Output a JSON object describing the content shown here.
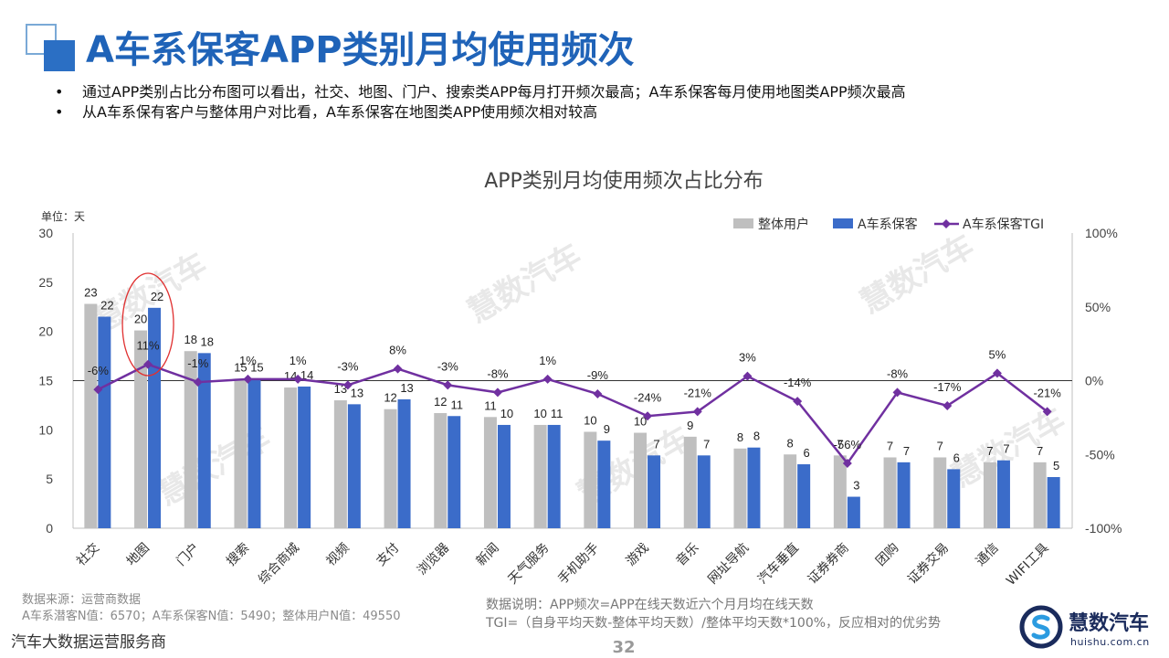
{
  "header": {
    "title": "A车系保客APP类别月均使用频次",
    "bullets": [
      "通过APP类别占比分布图可以看出，社交、地图、门户、搜索类APP每月打开频次最高；A车系保客每月使用地图类APP频次最高",
      "从A车系保有客户与整体用户对比看，A车系保客在地图类APP使用频次相对较高"
    ],
    "bullet_marker": "•"
  },
  "chart_data": {
    "type": "bar",
    "title": "APP类别月均使用频次占比分布",
    "unit_label": "单位：天",
    "categories": [
      "社交",
      "地图",
      "门户",
      "搜索",
      "综合商城",
      "视频",
      "支付",
      "浏览器",
      "新闻",
      "天气服务",
      "手机助手",
      "游戏",
      "音乐",
      "网址导航",
      "汽车垂直",
      "证券券商",
      "团购",
      "证券交易",
      "通信",
      "WIFI工具"
    ],
    "series": [
      {
        "name": "整体用户",
        "color": "#bfbfbf",
        "values": [
          22.8,
          20.1,
          18,
          15.2,
          14.3,
          13,
          12.1,
          11.7,
          11.3,
          10.5,
          9.8,
          9.7,
          9.3,
          8.1,
          7.5,
          7.4,
          7.2,
          7.2,
          6.7,
          6.7
        ],
        "labels": [
          "23",
          "20",
          "18",
          "15",
          "14",
          "13",
          "12",
          "12",
          "11",
          "10",
          "10",
          "10",
          "9",
          "8",
          "8",
          "7",
          "7",
          "7",
          "7",
          "7"
        ]
      },
      {
        "name": "A车系保客",
        "color": "#3b6cc9",
        "values": [
          21.5,
          22.4,
          17.8,
          15.2,
          14.4,
          12.6,
          13.1,
          11.4,
          10.5,
          10.5,
          8.9,
          7.4,
          7.4,
          8.2,
          6.5,
          3.2,
          6.7,
          6,
          6.9,
          5.2
        ],
        "labels": [
          "22",
          "22",
          "18",
          "15",
          "14",
          "13",
          "13",
          "11",
          "10",
          "11",
          "9",
          "7",
          "7",
          "8",
          "6",
          "3",
          "7",
          "6",
          "7",
          "5"
        ]
      },
      {
        "name": "A车系保客TGI",
        "color": "#7030a0",
        "type": "line",
        "values": [
          -6,
          11,
          -1,
          1,
          1,
          -3,
          8,
          -3,
          -8,
          1,
          -9,
          -24,
          -21,
          3,
          -14,
          -56,
          -8,
          -17,
          5,
          -21
        ],
        "labels": [
          "-6%",
          "11%",
          "-1%",
          "1%",
          "1%",
          "-3%",
          "8%",
          "-3%",
          "-8%",
          "1%",
          "-9%",
          "-24%",
          "-21%",
          "3%",
          "-14%",
          "-56%",
          "-8%",
          "-17%",
          "5%",
          "-21%"
        ]
      }
    ],
    "y_left": {
      "min": 0,
      "max": 30,
      "ticks": [
        "0",
        "5",
        "10",
        "15",
        "20",
        "25",
        "30"
      ]
    },
    "y_right": {
      "min": -100,
      "max": 100,
      "ticks": [
        "-100%",
        "-50%",
        "0%",
        "50%",
        "100%"
      ]
    },
    "highlight_category": "地图",
    "highlight_color": "#e03030",
    "legend_position": "top-right",
    "watermark": "慧数汽车"
  },
  "footer": {
    "source_line1": "数据来源：运营商数据",
    "source_line2": "A车系潜客N值：6570；A车系保客N值：5490；整体用户N值：49550",
    "company": "汽车大数据运营服务商",
    "note_line1": "数据说明：APP频次=APP在线天数近六个月月均在线天数",
    "note_line2": "TGI=（自身平均天数-整体平均天数）/整体平均天数*100%，反应相对的优劣势",
    "page_number": "32",
    "brand_name": "慧数汽车",
    "brand_url": "huishu.com.cn"
  },
  "colors": {
    "title": "#1f63b8",
    "grey_bar": "#bfbfbf",
    "blue_bar": "#3b6cc9",
    "tgi_line": "#7030a0"
  }
}
